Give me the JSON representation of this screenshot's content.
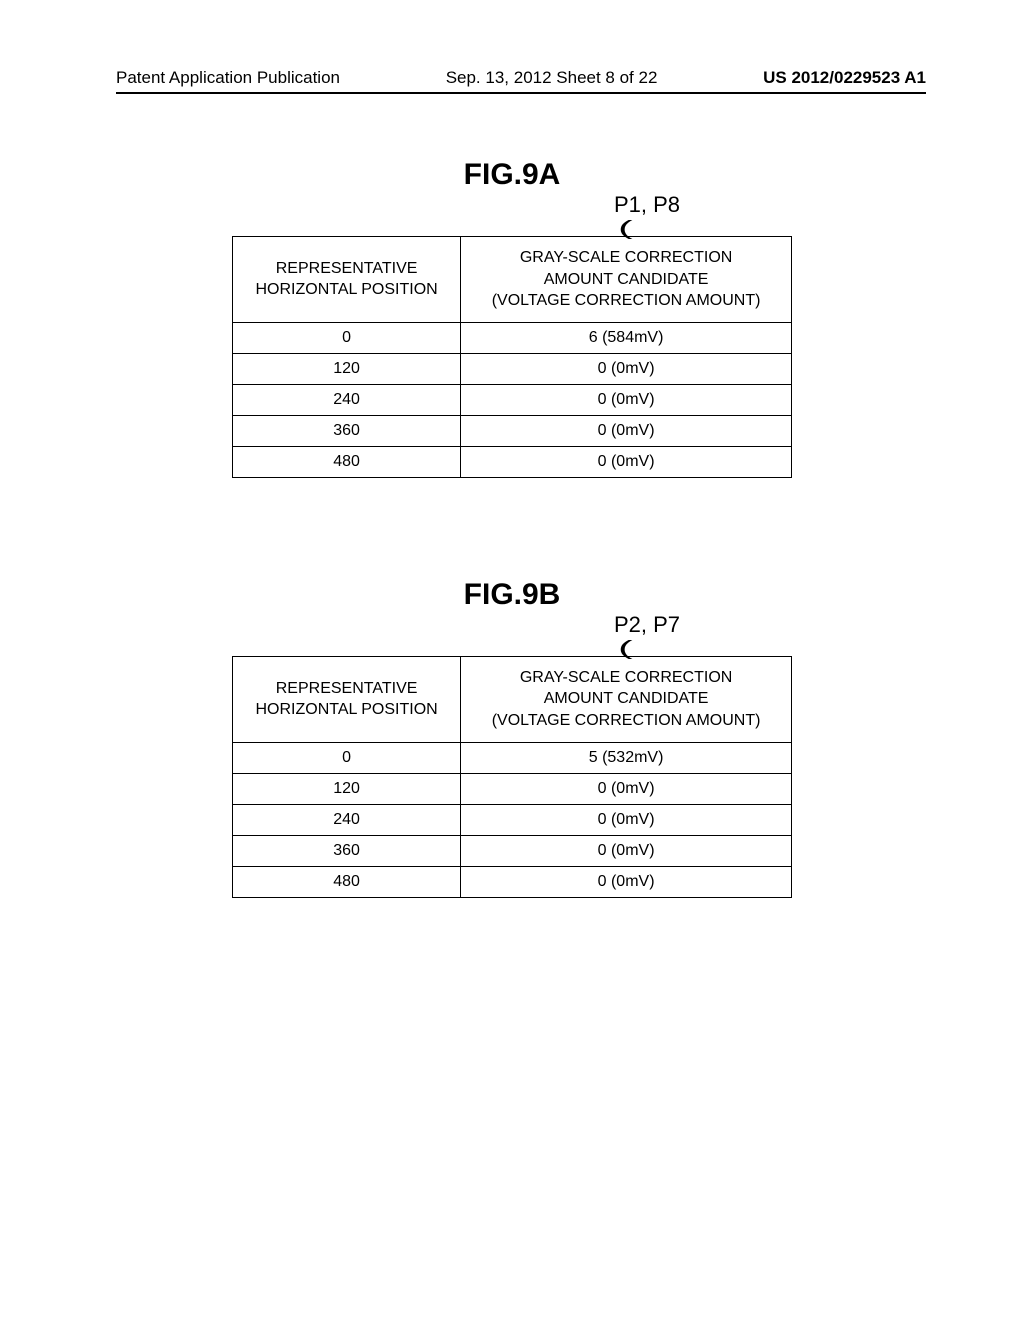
{
  "header": {
    "left": "Patent Application Publication",
    "center": "Sep. 13, 2012  Sheet 8 of 22",
    "right": "US 2012/0229523 A1"
  },
  "figures": [
    {
      "title": "FIG.9A",
      "callout": "P1, P8",
      "columns": [
        "REPRESENTATIVE\nHORIZONTAL POSITION",
        "GRAY-SCALE CORRECTION\nAMOUNT CANDIDATE\n(VOLTAGE CORRECTION AMOUNT)"
      ],
      "rows": [
        [
          "0",
          "6 (584mV)"
        ],
        [
          "120",
          "0 (0mV)"
        ],
        [
          "240",
          "0 (0mV)"
        ],
        [
          "360",
          "0 (0mV)"
        ],
        [
          "480",
          "0 (0mV)"
        ]
      ]
    },
    {
      "title": "FIG.9B",
      "callout": "P2, P7",
      "columns": [
        "REPRESENTATIVE\nHORIZONTAL POSITION",
        "GRAY-SCALE CORRECTION\nAMOUNT CANDIDATE\n(VOLTAGE CORRECTION AMOUNT)"
      ],
      "rows": [
        [
          "0",
          "5 (532mV)"
        ],
        [
          "120",
          "0 (0mV)"
        ],
        [
          "240",
          "0 (0mV)"
        ],
        [
          "360",
          "0 (0mV)"
        ],
        [
          "480",
          "0 (0mV)"
        ]
      ]
    }
  ]
}
